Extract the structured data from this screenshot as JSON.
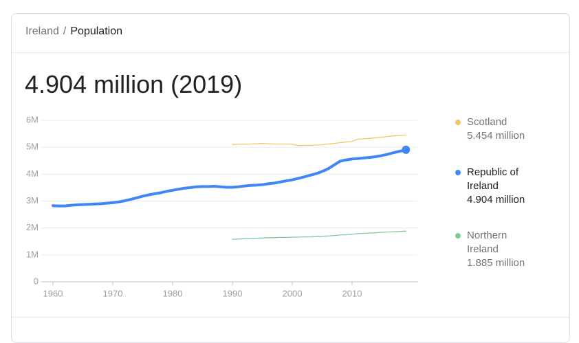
{
  "breadcrumb": {
    "parent": "Ireland",
    "separator": "/",
    "current": "Population"
  },
  "headline": "4.904 million (2019)",
  "chart_data": {
    "type": "line",
    "x": [
      1960,
      1961,
      1962,
      1963,
      1964,
      1965,
      1966,
      1967,
      1968,
      1969,
      1970,
      1971,
      1972,
      1973,
      1974,
      1975,
      1976,
      1977,
      1978,
      1979,
      1980,
      1981,
      1982,
      1983,
      1984,
      1985,
      1986,
      1987,
      1988,
      1989,
      1990,
      1991,
      1992,
      1993,
      1994,
      1995,
      1996,
      1997,
      1998,
      1999,
      2000,
      2001,
      2002,
      2003,
      2004,
      2005,
      2006,
      2007,
      2008,
      2009,
      2010,
      2011,
      2012,
      2013,
      2014,
      2015,
      2016,
      2017,
      2018,
      2019
    ],
    "xlim": [
      1958,
      2021
    ],
    "xticks": [
      1960,
      1970,
      1980,
      1990,
      2000,
      2010
    ],
    "ylim": [
      0,
      6
    ],
    "yticks": [
      0,
      {
        "value": 1,
        "label": "1M"
      },
      {
        "value": 2,
        "label": "2M"
      },
      {
        "value": 3,
        "label": "3M"
      },
      {
        "value": 4,
        "label": "4M"
      },
      {
        "value": 5,
        "label": "5M"
      },
      {
        "value": 6,
        "label": "6M"
      }
    ],
    "grid": true,
    "series": [
      {
        "name": "Scotland",
        "color": "#f6c26b",
        "value_label": "5.454 million",
        "values": [
          null,
          null,
          null,
          null,
          null,
          null,
          null,
          null,
          null,
          null,
          null,
          null,
          null,
          null,
          null,
          null,
          null,
          null,
          null,
          null,
          null,
          null,
          null,
          null,
          null,
          null,
          null,
          null,
          null,
          null,
          5.1,
          5.11,
          5.11,
          5.12,
          5.13,
          5.14,
          5.13,
          5.12,
          5.12,
          5.12,
          5.11,
          5.06,
          5.07,
          5.07,
          5.08,
          5.09,
          5.12,
          5.14,
          5.17,
          5.19,
          5.22,
          5.3,
          5.31,
          5.33,
          5.35,
          5.37,
          5.4,
          5.42,
          5.44,
          5.454
        ]
      },
      {
        "name": "Republic of Ireland",
        "color": "#4285f4",
        "value_label": "4.904 million",
        "active": true,
        "values": [
          2.83,
          2.82,
          2.82,
          2.84,
          2.86,
          2.87,
          2.88,
          2.89,
          2.9,
          2.92,
          2.94,
          2.97,
          3.01,
          3.06,
          3.12,
          3.18,
          3.23,
          3.27,
          3.31,
          3.36,
          3.4,
          3.44,
          3.48,
          3.5,
          3.53,
          3.54,
          3.54,
          3.55,
          3.53,
          3.51,
          3.51,
          3.53,
          3.56,
          3.58,
          3.59,
          3.61,
          3.64,
          3.67,
          3.71,
          3.75,
          3.79,
          3.84,
          3.9,
          3.96,
          4.02,
          4.1,
          4.2,
          4.34,
          4.48,
          4.53,
          4.56,
          4.58,
          4.6,
          4.62,
          4.65,
          4.69,
          4.74,
          4.8,
          4.85,
          4.904
        ]
      },
      {
        "name": "Northern Ireland",
        "color": "#81c995",
        "value_label": "1.885 million",
        "values": [
          null,
          null,
          null,
          null,
          null,
          null,
          null,
          null,
          null,
          null,
          null,
          null,
          null,
          null,
          null,
          null,
          null,
          null,
          null,
          null,
          null,
          null,
          null,
          null,
          null,
          null,
          null,
          null,
          null,
          null,
          1.58,
          1.59,
          1.6,
          1.61,
          1.62,
          1.63,
          1.64,
          1.64,
          1.65,
          1.65,
          1.66,
          1.66,
          1.67,
          1.67,
          1.68,
          1.69,
          1.7,
          1.72,
          1.74,
          1.75,
          1.77,
          1.79,
          1.8,
          1.81,
          1.82,
          1.84,
          1.85,
          1.86,
          1.87,
          1.885
        ]
      }
    ]
  }
}
